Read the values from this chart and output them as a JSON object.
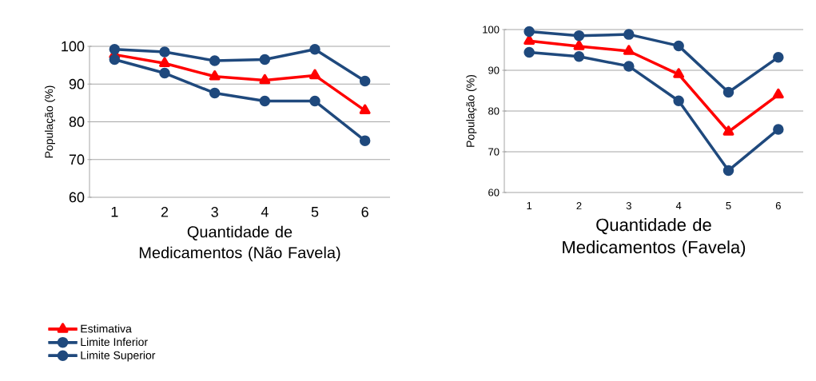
{
  "chart_data": [
    {
      "type": "line",
      "xlabel": "Quantidade de Medicamentos (Não Favela)",
      "ylabel": "População (%)",
      "categories": [
        "1",
        "2",
        "3",
        "4",
        "5",
        "6"
      ],
      "ylim": [
        60,
        100
      ],
      "yticks": [
        60,
        70,
        80,
        90,
        100
      ],
      "grid": "y",
      "legend": "bottom left",
      "series": [
        {
          "name": "Estimativa",
          "color": "#ff0000",
          "marker": "triangle",
          "values": [
            97.8,
            95.5,
            92.0,
            91.0,
            92.3,
            83.0
          ]
        },
        {
          "name": "Limite Inferior",
          "color": "#1f497d",
          "marker": "circle",
          "values": [
            96.5,
            92.9,
            87.6,
            85.5,
            85.5,
            75.0
          ]
        },
        {
          "name": "Limite Superior",
          "color": "#1f497d",
          "marker": "circle",
          "values": [
            99.2,
            98.5,
            96.2,
            96.5,
            99.2,
            90.8
          ]
        }
      ]
    },
    {
      "type": "line",
      "xlabel": "Quantidade de Medicamentos (Favela)",
      "ylabel": "População (%)",
      "categories": [
        "1",
        "2",
        "3",
        "4",
        "5",
        "6"
      ],
      "ylim": [
        60,
        100
      ],
      "yticks": [
        60,
        70,
        80,
        90,
        100
      ],
      "grid": "y",
      "series": [
        {
          "color": "#ff0000",
          "marker": "triangle",
          "values": [
            97.2,
            95.9,
            94.7,
            89.0,
            74.9,
            84.0
          ]
        },
        {
          "color": "#1f497d",
          "marker": "circle",
          "values": [
            94.4,
            93.4,
            91.0,
            82.5,
            65.4,
            75.5
          ]
        },
        {
          "color": "#1f497d",
          "marker": "circle",
          "values": [
            99.5,
            98.5,
            98.8,
            96.0,
            84.6,
            93.2
          ]
        }
      ]
    }
  ]
}
